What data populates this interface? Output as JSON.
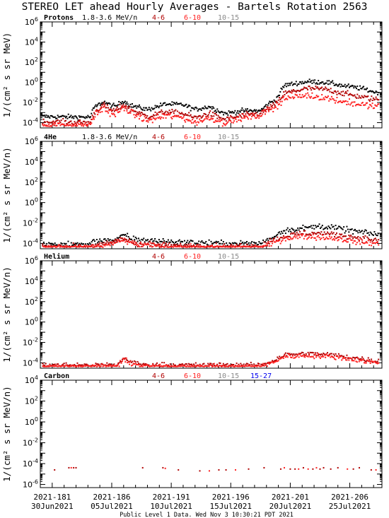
{
  "title": "STEREO LET ahead Hourly Averages - Bartels Rotation 2563",
  "footer": "Public Level 1 Data. Wed Nov  3 10:30:21 PDT 2021",
  "colors": {
    "black": "#000000",
    "dark_red": "#b00000",
    "red": "#ff2020",
    "gray": "#8a8a8a",
    "blue": "#0000ee"
  },
  "chart_data": [
    {
      "type": "scatter",
      "panel_label": "Protons",
      "ylabel": "1/(cm² s sr MeV)",
      "yscale": "log",
      "ylim": [
        3e-05,
        1000000
      ],
      "yticks": [
        {
          "base": "10",
          "exp": "6",
          "value": 1000000
        },
        {
          "base": "10",
          "exp": "4",
          "value": 10000
        },
        {
          "base": "10",
          "exp": "2",
          "value": 100
        },
        {
          "base": "10",
          "exp": "0",
          "value": 1
        },
        {
          "base": "10",
          "exp": "-2",
          "value": 0.01
        },
        {
          "base": "10",
          "exp": "-4",
          "value": 0.0001
        }
      ],
      "legend": [
        {
          "label": "1.8-3.6 MeV/n",
          "color": "#000000"
        },
        {
          "label": "4-6",
          "color": "#b00000"
        },
        {
          "label": "6-10",
          "color": "#ff2020"
        },
        {
          "label": "10-15",
          "color": "#8a8a8a"
        }
      ],
      "series": [
        {
          "name": "1.8-3.6 MeV/n",
          "color": "#000000",
          "anchors": [
            [
              180.2,
              0.0004
            ],
            [
              184.2,
              0.00035
            ],
            [
              184.5,
              0.003
            ],
            [
              185.3,
              0.012
            ],
            [
              185.8,
              0.006
            ],
            [
              186.3,
              0.004
            ],
            [
              187.0,
              0.015
            ],
            [
              187.6,
              0.005
            ],
            [
              189.0,
              0.002
            ],
            [
              190.5,
              0.007
            ],
            [
              192.0,
              0.006
            ],
            [
              193.0,
              0.002
            ],
            [
              194.2,
              0.004
            ],
            [
              195.5,
              0.0008
            ],
            [
              197.0,
              0.0015
            ],
            [
              198.5,
              0.0015
            ],
            [
              199.2,
              0.008
            ],
            [
              199.8,
              0.02
            ],
            [
              200.5,
              0.5
            ],
            [
              201.5,
              0.8
            ],
            [
              202.5,
              1.2
            ],
            [
              204.0,
              1.0
            ],
            [
              205.5,
              0.45
            ],
            [
              207.0,
              0.25
            ],
            [
              208.2,
              0.1
            ]
          ],
          "spread": 0.25,
          "n": 380
        },
        {
          "name": "4-6",
          "color": "#b00000",
          "anchors": [
            [
              180.2,
              0.00012
            ],
            [
              184.2,
              0.0001
            ],
            [
              184.5,
              0.0009
            ],
            [
              185.3,
              0.006
            ],
            [
              185.8,
              0.002
            ],
            [
              186.3,
              0.0015
            ],
            [
              187.0,
              0.006
            ],
            [
              187.6,
              0.002
            ],
            [
              189.0,
              0.0004
            ],
            [
              190.5,
              0.0012
            ],
            [
              192.0,
              0.0008
            ],
            [
              193.0,
              0.0003
            ],
            [
              194.2,
              0.0008
            ],
            [
              195.5,
              0.0002
            ],
            [
              197.0,
              0.0005
            ],
            [
              198.5,
              0.0008
            ],
            [
              199.2,
              0.003
            ],
            [
              199.8,
              0.007
            ],
            [
              200.5,
              0.08
            ],
            [
              201.5,
              0.15
            ],
            [
              202.5,
              0.25
            ],
            [
              204.0,
              0.2
            ],
            [
              205.5,
              0.08
            ],
            [
              207.0,
              0.035
            ],
            [
              208.2,
              0.02
            ]
          ],
          "spread": 0.3,
          "n": 380
        },
        {
          "name": "6-10",
          "color": "#ff2020",
          "anchors": [
            [
              180.2,
              6e-05
            ],
            [
              184.2,
              6e-05
            ],
            [
              184.5,
              0.0004
            ],
            [
              185.3,
              0.003
            ],
            [
              185.8,
              0.001
            ],
            [
              186.3,
              0.0007
            ],
            [
              187.0,
              0.003
            ],
            [
              187.6,
              0.001
            ],
            [
              189.0,
              0.00015
            ],
            [
              190.5,
              0.0005
            ],
            [
              192.0,
              0.0003
            ],
            [
              193.0,
              0.0001
            ],
            [
              194.2,
              0.0003
            ],
            [
              195.5,
              0.0001
            ],
            [
              197.0,
              0.0003
            ],
            [
              198.5,
              0.0005
            ],
            [
              199.2,
              0.002
            ],
            [
              199.8,
              0.004
            ],
            [
              200.5,
              0.025
            ],
            [
              201.5,
              0.04
            ],
            [
              202.5,
              0.05
            ],
            [
              204.0,
              0.03
            ],
            [
              205.5,
              0.012
            ],
            [
              207.0,
              0.006
            ],
            [
              208.2,
              0.004
            ]
          ],
          "spread": 0.35,
          "n": 380
        }
      ]
    },
    {
      "type": "scatter",
      "panel_label": "4He",
      "ylabel": "1/(cm² s sr MeV/n)",
      "yscale": "log",
      "ylim": [
        3e-05,
        1000000
      ],
      "yticks": [
        {
          "base": "10",
          "exp": "6",
          "value": 1000000
        },
        {
          "base": "10",
          "exp": "4",
          "value": 10000
        },
        {
          "base": "10",
          "exp": "2",
          "value": 100
        },
        {
          "base": "10",
          "exp": "0",
          "value": 1
        },
        {
          "base": "10",
          "exp": "-2",
          "value": 0.01
        },
        {
          "base": "10",
          "exp": "-4",
          "value": 0.0001
        }
      ],
      "legend": [
        {
          "label": "1.8-3.6 MeV/n",
          "color": "#000000"
        },
        {
          "label": "4-6",
          "color": "#b00000"
        },
        {
          "label": "6-10",
          "color": "#ff2020"
        },
        {
          "label": "10-15",
          "color": "#8a8a8a"
        }
      ],
      "series": [
        {
          "name": "1.8-3.6 MeV/n",
          "color": "#000000",
          "anchors": [
            [
              180.2,
              8e-05
            ],
            [
              184.0,
              8e-05
            ],
            [
              184.5,
              0.00015
            ],
            [
              185.5,
              0.00025
            ],
            [
              186.3,
              0.00015
            ],
            [
              187.0,
              0.0008
            ],
            [
              187.6,
              0.0003
            ],
            [
              189.0,
              0.0002
            ],
            [
              191.0,
              0.00015
            ],
            [
              193.0,
              0.00012
            ],
            [
              195.5,
              0.0001
            ],
            [
              198.5,
              0.0001
            ],
            [
              199.5,
              0.0004
            ],
            [
              200.5,
              0.002
            ],
            [
              202.0,
              0.003
            ],
            [
              203.5,
              0.005
            ],
            [
              205.0,
              0.003
            ],
            [
              206.5,
              0.0015
            ],
            [
              208.2,
              0.0008
            ]
          ],
          "spread": 0.3,
          "n": 330
        },
        {
          "name": "4-6",
          "color": "#b00000",
          "anchors": [
            [
              180.2,
              5e-05
            ],
            [
              184.0,
              5e-05
            ],
            [
              185.5,
              8e-05
            ],
            [
              187.0,
              0.0003
            ],
            [
              188.0,
              0.0001
            ],
            [
              191.0,
              6e-05
            ],
            [
              195.5,
              5e-05
            ],
            [
              198.5,
              5e-05
            ],
            [
              199.5,
              0.0002
            ],
            [
              200.5,
              0.0005
            ],
            [
              202.0,
              0.001
            ],
            [
              203.5,
              0.001
            ],
            [
              205.0,
              0.0007
            ],
            [
              206.5,
              0.0004
            ],
            [
              208.2,
              0.0002
            ]
          ],
          "spread": 0.3,
          "n": 330
        },
        {
          "name": "6-10",
          "color": "#ff2020",
          "anchors": [
            [
              180.2,
              4e-05
            ],
            [
              184.0,
              4e-05
            ],
            [
              185.5,
              6e-05
            ],
            [
              187.0,
              0.0002
            ],
            [
              188.0,
              8e-05
            ],
            [
              191.0,
              4e-05
            ],
            [
              195.5,
              4e-05
            ],
            [
              198.5,
              4e-05
            ],
            [
              199.5,
              0.0001
            ],
            [
              200.5,
              0.0003
            ],
            [
              202.0,
              0.0005
            ],
            [
              203.5,
              0.0004
            ],
            [
              205.0,
              0.0003
            ],
            [
              206.5,
              0.00015
            ],
            [
              208.2,
              0.0001
            ]
          ],
          "spread": 0.3,
          "n": 330
        }
      ]
    },
    {
      "type": "scatter",
      "panel_label": "Helium",
      "ylabel": "1/(cm² s sr MeV/n)",
      "yscale": "log",
      "ylim": [
        3e-05,
        1000000
      ],
      "yticks": [
        {
          "base": "10",
          "exp": "6",
          "value": 1000000
        },
        {
          "base": "10",
          "exp": "4",
          "value": 10000
        },
        {
          "base": "10",
          "exp": "2",
          "value": 100
        },
        {
          "base": "10",
          "exp": "0",
          "value": 1
        },
        {
          "base": "10",
          "exp": "-2",
          "value": 0.01
        },
        {
          "base": "10",
          "exp": "-4",
          "value": 0.0001
        }
      ],
      "legend": [
        {
          "label": "4-6",
          "color": "#b00000"
        },
        {
          "label": "6-10",
          "color": "#ff2020"
        },
        {
          "label": "10-15",
          "color": "#8a8a8a"
        }
      ],
      "series": [
        {
          "name": "4-6",
          "color": "#b00000",
          "anchors": [
            [
              180.2,
              6e-05
            ],
            [
              186.5,
              6e-05
            ],
            [
              187.0,
              0.0003
            ],
            [
              187.8,
              0.0001
            ],
            [
              189.0,
              6e-05
            ],
            [
              198.5,
              6e-05
            ],
            [
              199.5,
              0.00015
            ],
            [
              200.5,
              0.0006
            ],
            [
              202.5,
              0.0008
            ],
            [
              204.5,
              0.0006
            ],
            [
              206.5,
              0.0003
            ],
            [
              208.2,
              0.00015
            ]
          ],
          "spread": 0.25,
          "n": 330
        },
        {
          "name": "6-10",
          "color": "#ff2020",
          "anchors": [
            [
              180.2,
              4e-05
            ],
            [
              186.5,
              4e-05
            ],
            [
              187.0,
              0.0002
            ],
            [
              187.8,
              8e-05
            ],
            [
              189.0,
              4e-05
            ],
            [
              198.5,
              4e-05
            ],
            [
              199.5,
              0.0001
            ],
            [
              200.5,
              0.0004
            ],
            [
              202.5,
              0.0005
            ],
            [
              204.5,
              0.0004
            ],
            [
              206.5,
              0.0002
            ],
            [
              208.2,
              0.0001
            ]
          ],
          "spread": 0.25,
          "n": 330
        }
      ]
    },
    {
      "type": "scatter",
      "panel_label": "Carbon",
      "ylabel": "1/(cm² s sr MeV/n)",
      "yscale": "log",
      "ylim": [
        5e-07,
        10000
      ],
      "yticks": [
        {
          "base": "10",
          "exp": "4",
          "value": 10000
        },
        {
          "base": "10",
          "exp": "2",
          "value": 100
        },
        {
          "base": "10",
          "exp": "0",
          "value": 1
        },
        {
          "base": "10",
          "exp": "-2",
          "value": 0.01
        },
        {
          "base": "10",
          "exp": "-4",
          "value": 0.0001
        },
        {
          "base": "10",
          "exp": "-6",
          "value": 1e-06
        }
      ],
      "legend": [
        {
          "label": "4-6",
          "color": "#b00000"
        },
        {
          "label": "6-10",
          "color": "#ff2020"
        },
        {
          "label": "10-15",
          "color": "#8a8a8a"
        },
        {
          "label": "15-27",
          "color": "#0000ee"
        }
      ],
      "points": [
        [
          181.2,
          2.5e-05,
          "#b00000"
        ],
        [
          182.4,
          4e-05,
          "#b00000"
        ],
        [
          182.6,
          4e-05,
          "#ff2020"
        ],
        [
          182.8,
          4e-05,
          "#b00000"
        ],
        [
          183.0,
          4e-05,
          "#b00000"
        ],
        [
          188.6,
          4e-05,
          "#b00000"
        ],
        [
          190.3,
          4e-05,
          "#b00000"
        ],
        [
          190.5,
          3.5e-05,
          "#ff2020"
        ],
        [
          191.6,
          2.5e-05,
          "#b00000"
        ],
        [
          193.4,
          2e-05,
          "#b00000"
        ],
        [
          194.2,
          2e-05,
          "#ff2020"
        ],
        [
          195.0,
          2.5e-05,
          "#b00000"
        ],
        [
          195.6,
          2.5e-05,
          "#b00000"
        ],
        [
          196.4,
          2.5e-05,
          "#ff2020"
        ],
        [
          197.5,
          3e-05,
          "#b00000"
        ],
        [
          198.8,
          4e-05,
          "#b00000"
        ],
        [
          200.2,
          3e-05,
          "#b00000"
        ],
        [
          200.5,
          4e-05,
          "#ff2020"
        ],
        [
          201.0,
          3e-05,
          "#b00000"
        ],
        [
          201.4,
          3e-05,
          "#b00000"
        ],
        [
          201.7,
          3e-05,
          "#ff2020"
        ],
        [
          202.1,
          4e-05,
          "#b00000"
        ],
        [
          202.5,
          3e-05,
          "#ff2020"
        ],
        [
          202.9,
          3e-05,
          "#b00000"
        ],
        [
          203.2,
          4e-05,
          "#ff2020"
        ],
        [
          203.5,
          3e-05,
          "#b00000"
        ],
        [
          203.8,
          4e-05,
          "#b00000"
        ],
        [
          204.4,
          3e-05,
          "#b00000"
        ],
        [
          205.0,
          4e-05,
          "#b00000"
        ],
        [
          205.8,
          3e-05,
          "#ff2020"
        ],
        [
          206.3,
          3e-05,
          "#b00000"
        ],
        [
          206.8,
          4e-05,
          "#b00000"
        ],
        [
          207.8,
          2.5e-05,
          "#b00000"
        ],
        [
          208.2,
          2.5e-05,
          "#ff2020"
        ]
      ]
    }
  ],
  "xaxis": {
    "xlim": [
      180.0,
      208.7
    ],
    "major_ticks": [
      {
        "value": 181,
        "doy": "2021-181",
        "date": "30Jun2021"
      },
      {
        "value": 186,
        "doy": "2021-186",
        "date": "05Jul2021"
      },
      {
        "value": 191,
        "doy": "2021-191",
        "date": "10Jul2021"
      },
      {
        "value": 196,
        "doy": "2021-196",
        "date": "15Jul2021"
      },
      {
        "value": 201,
        "doy": "2021-201",
        "date": "20Jul2021"
      },
      {
        "value": 206,
        "doy": "2021-206",
        "date": "25Jul2021"
      }
    ]
  }
}
